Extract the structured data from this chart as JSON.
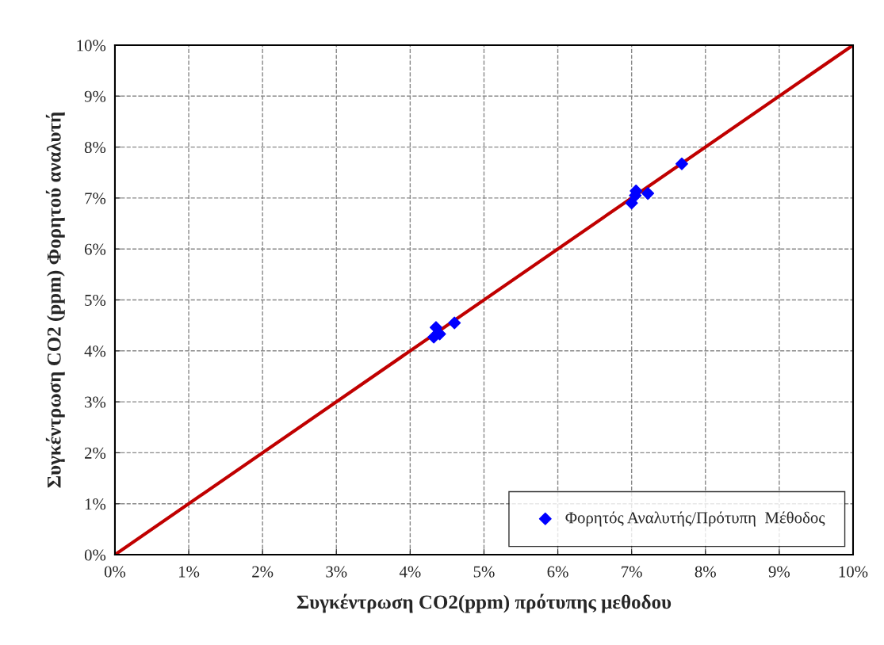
{
  "chart_data": {
    "type": "scatter",
    "xlabel": "Συγκέντρωση CO2(ppm) πρότυπης μεθοδου",
    "ylabel": "Συγκέντρωση CO2 (ppm) Φορητού αναλυτή",
    "xlim": [
      0,
      10
    ],
    "ylim": [
      0,
      10
    ],
    "xticks": [
      {
        "value": 0,
        "label": "0%"
      },
      {
        "value": 1,
        "label": "1%"
      },
      {
        "value": 2,
        "label": "2%"
      },
      {
        "value": 3,
        "label": "3%"
      },
      {
        "value": 4,
        "label": "4%"
      },
      {
        "value": 5,
        "label": "5%"
      },
      {
        "value": 6,
        "label": "6%"
      },
      {
        "value": 7,
        "label": "7%"
      },
      {
        "value": 8,
        "label": "8%"
      },
      {
        "value": 9,
        "label": "9%"
      },
      {
        "value": 10,
        "label": "10%"
      }
    ],
    "yticks": [
      {
        "value": 0,
        "label": "0%"
      },
      {
        "value": 1,
        "label": "1%"
      },
      {
        "value": 2,
        "label": "2%"
      },
      {
        "value": 3,
        "label": "3%"
      },
      {
        "value": 4,
        "label": "4%"
      },
      {
        "value": 5,
        "label": "5%"
      },
      {
        "value": 6,
        "label": "6%"
      },
      {
        "value": 7,
        "label": "7%"
      },
      {
        "value": 8,
        "label": "8%"
      },
      {
        "value": 9,
        "label": "9%"
      },
      {
        "value": 10,
        "label": "10%"
      }
    ],
    "grid": true,
    "legend": "bottom right",
    "series": [
      {
        "name": "Φορητός Αναλυτής/Πρότυπη  Μέθοδος",
        "color": "#0000ff",
        "marker": "diamond",
        "x": [
          4.32,
          4.35,
          4.4,
          4.6,
          7.0,
          7.05,
          7.06,
          7.22,
          7.68
        ],
        "values": [
          4.27,
          4.46,
          4.33,
          4.55,
          6.9,
          7.05,
          7.14,
          7.09,
          7.67
        ]
      },
      {
        "type": "line",
        "color": "#c00000",
        "line_style": "solid",
        "x": [
          0,
          10
        ],
        "values": [
          0,
          10
        ]
      }
    ]
  }
}
